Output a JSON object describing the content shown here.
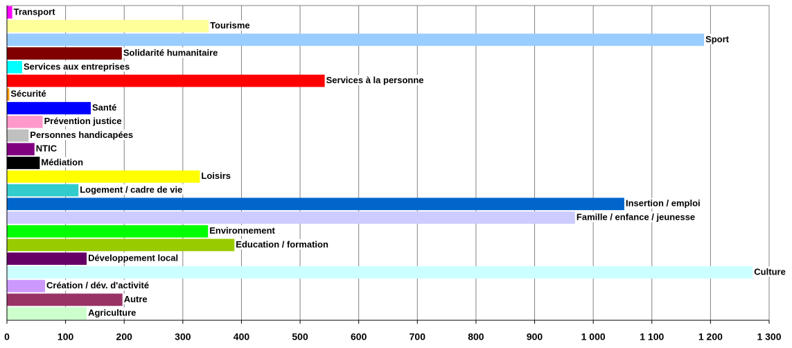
{
  "chart_data": {
    "type": "barh",
    "categories": [
      "Transport",
      "Tourisme",
      "Sport",
      "Solidarité humanitaire",
      "Services aux entreprises",
      "Services à la personne",
      "Sécurité",
      "Santé",
      "Prévention justice",
      "Personnes handicapées",
      "NTIC",
      "Médiation",
      "Loisirs",
      "Logement / cadre de vie",
      "Insertion / emploi",
      "Famille / enfance / jeunesse",
      "Environnement",
      "Education / formation",
      "Développement local",
      "Culture",
      "Création / dév. d'activité",
      "Autre",
      "Agriculture"
    ],
    "values": [
      9,
      344,
      1189,
      196,
      26,
      542,
      4,
      143,
      61,
      37,
      47,
      56,
      329,
      122,
      1053,
      969,
      343,
      388,
      136,
      1272,
      65,
      197,
      136
    ],
    "colors": [
      "#ff00ff",
      "#ffff99",
      "#99ccff",
      "#800000",
      "#00ffff",
      "#ff0000",
      "#ff9900",
      "#0000ff",
      "#ff99cc",
      "#c0c0c0",
      "#800080",
      "#000000",
      "#ffff00",
      "#33cccc",
      "#0066cc",
      "#ccccff",
      "#00ff00",
      "#99cc00",
      "#660066",
      "#ccffff",
      "#cc99ff",
      "#993366",
      "#ccffcc"
    ],
    "xlim": [
      0,
      1300
    ],
    "xticks": [
      0,
      100,
      200,
      300,
      400,
      500,
      600,
      700,
      800,
      900,
      {
        "value": 1000,
        "label": "1 000"
      },
      {
        "value": 1100,
        "label": "1 100"
      },
      {
        "value": 1200,
        "label": "1 200"
      },
      {
        "value": 1300,
        "label": "1 300"
      }
    ],
    "grid": true
  }
}
